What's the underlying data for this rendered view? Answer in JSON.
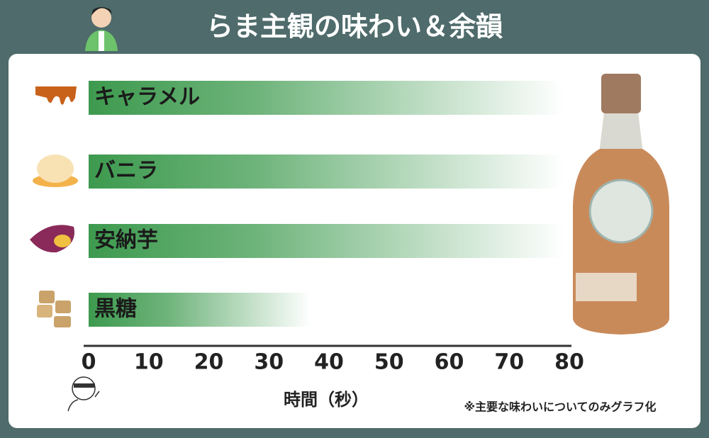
{
  "chart_data": {
    "type": "bar",
    "orientation": "horizontal",
    "title": "らま主観の味わい＆余韻",
    "categories": [
      "キャラメル",
      "バニラ",
      "安納芋",
      "黒糖"
    ],
    "values": [
      79,
      79,
      79,
      37
    ],
    "color": "#3d9a4e",
    "xlim": [
      0,
      80
    ],
    "xticks": [
      0,
      10,
      20,
      30,
      40,
      50,
      60,
      70,
      80
    ],
    "x_label": "時間（秒）",
    "note": "※主要な味わいについてのみグラフ化"
  }
}
